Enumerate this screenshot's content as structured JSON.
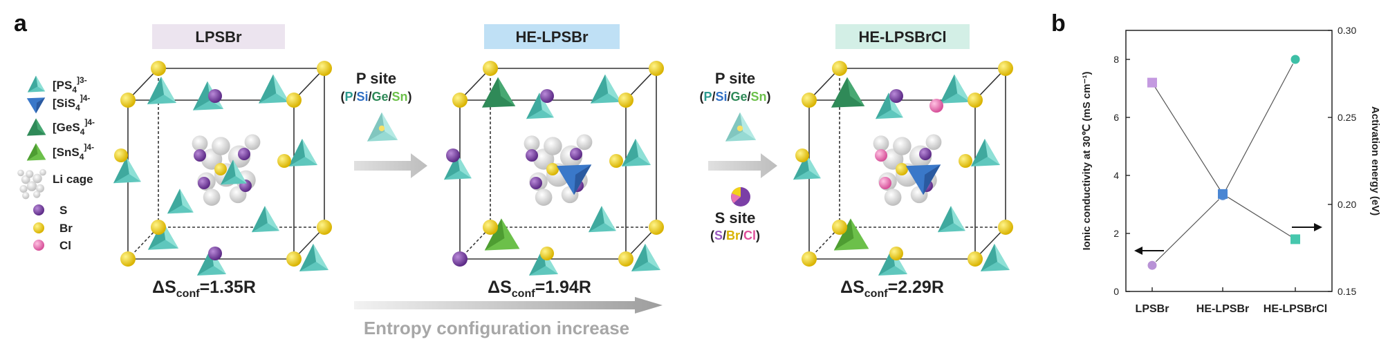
{
  "panel_a": {
    "letter": "a",
    "legend": [
      {
        "label": "[PS",
        "sub": "4",
        "sup": "]3-",
        "icon": "tetrahedron-teal-icon",
        "color": "#5fc7bd"
      },
      {
        "label": "[SiS",
        "sub": "4",
        "sup": "]4-",
        "icon": "tetrahedron-blue-icon",
        "color": "#3a78c9"
      },
      {
        "label": "[GeS",
        "sub": "4",
        "sup": "]4-",
        "icon": "tetrahedron-darkgreen-icon",
        "color": "#2f8a58"
      },
      {
        "label": "[SnS",
        "sub": "4",
        "sup": "]4-",
        "icon": "tetrahedron-green-icon",
        "color": "#6cc04a"
      },
      {
        "label": "Li cage",
        "icon": "li-cage-icon",
        "color": "#cfcfcf"
      },
      {
        "label": "S",
        "icon": "sphere-purple-icon",
        "color": "#7b3fa6"
      },
      {
        "label": "Br",
        "icon": "sphere-yellow-icon",
        "color": "#f2d21a"
      },
      {
        "label": "Cl",
        "icon": "sphere-pink-icon",
        "color": "#e874b3"
      }
    ],
    "structures": [
      {
        "name": "LPSBr",
        "label_bg": "#ece4ef",
        "entropy_prefix": "ΔS",
        "entropy_sub": "conf",
        "entropy_value": "=1.35R"
      },
      {
        "name": "HE-LPSBr",
        "label_bg": "#bfe0f5",
        "entropy_prefix": "ΔS",
        "entropy_sub": "conf",
        "entropy_value": "=1.94R"
      },
      {
        "name": "HE-LPSBrCl",
        "label_bg": "#d3efe6",
        "entropy_prefix": "ΔS",
        "entropy_sub": "conf",
        "entropy_value": "=2.29R"
      }
    ],
    "transition1": {
      "title": "P site",
      "substitution": [
        {
          "t": "(",
          "c": "#222"
        },
        {
          "t": "P",
          "c": "#2c9a8f"
        },
        {
          "t": "/",
          "c": "#222"
        },
        {
          "t": "Si",
          "c": "#2f6fc4"
        },
        {
          "t": "/",
          "c": "#222"
        },
        {
          "t": "Ge",
          "c": "#2f8a58"
        },
        {
          "t": "/",
          "c": "#222"
        },
        {
          "t": "Sn",
          "c": "#6cc04a"
        },
        {
          "t": ")",
          "c": "#222"
        }
      ]
    },
    "transition2": {
      "p_title": "P site",
      "p_substitution": [
        {
          "t": "(",
          "c": "#222"
        },
        {
          "t": "P",
          "c": "#2c9a8f"
        },
        {
          "t": "/",
          "c": "#222"
        },
        {
          "t": "Si",
          "c": "#2f6fc4"
        },
        {
          "t": "/",
          "c": "#222"
        },
        {
          "t": "Ge",
          "c": "#2f8a58"
        },
        {
          "t": "/",
          "c": "#222"
        },
        {
          "t": "Sn",
          "c": "#6cc04a"
        },
        {
          "t": ")",
          "c": "#222"
        }
      ],
      "s_title": "S site",
      "s_substitution": [
        {
          "t": "(",
          "c": "#222"
        },
        {
          "t": "S",
          "c": "#9a5ac0"
        },
        {
          "t": "/",
          "c": "#222"
        },
        {
          "t": "Br",
          "c": "#d9b300"
        },
        {
          "t": "/",
          "c": "#222"
        },
        {
          "t": "Cl",
          "c": "#e04f9a"
        },
        {
          "t": ")",
          "c": "#222"
        }
      ]
    },
    "entropy_arrow_label": "Entropy configuration increase"
  },
  "panel_b": {
    "letter": "b"
  },
  "chart_data": {
    "type": "line",
    "categories": [
      "LPSBr",
      "HE-LPSBr",
      "HE-LPSBrCl"
    ],
    "series": [
      {
        "values": [
          0.9,
          3.3,
          8.0
        ],
        "axis": "left",
        "marker": "circle",
        "colors": [
          "#b892d6",
          "#5b8fd4",
          "#3dbfa6"
        ]
      },
      {
        "values": [
          0.27,
          0.206,
          0.18
        ],
        "axis": "right",
        "marker": "square",
        "colors": [
          "#c49ae0",
          "#4a86d3",
          "#46c7ad"
        ]
      }
    ],
    "ylabel": "Ionic conductivity at 30℃ (mS cm⁻¹)",
    "y2label": "Activation energy (eV)",
    "ylim": [
      0,
      9
    ],
    "y2lim": [
      0.15,
      0.3
    ],
    "yticks": [
      "0",
      "2",
      "4",
      "6",
      "8"
    ],
    "y2ticks": [
      "0.15",
      "0.20",
      "0.25",
      "0.30"
    ],
    "ytick_values": [
      0,
      2,
      4,
      6,
      8
    ],
    "y2tick_values": [
      0.15,
      0.2,
      0.25,
      0.3
    ],
    "left_arrow_series": "left",
    "right_arrow_series": "right"
  }
}
